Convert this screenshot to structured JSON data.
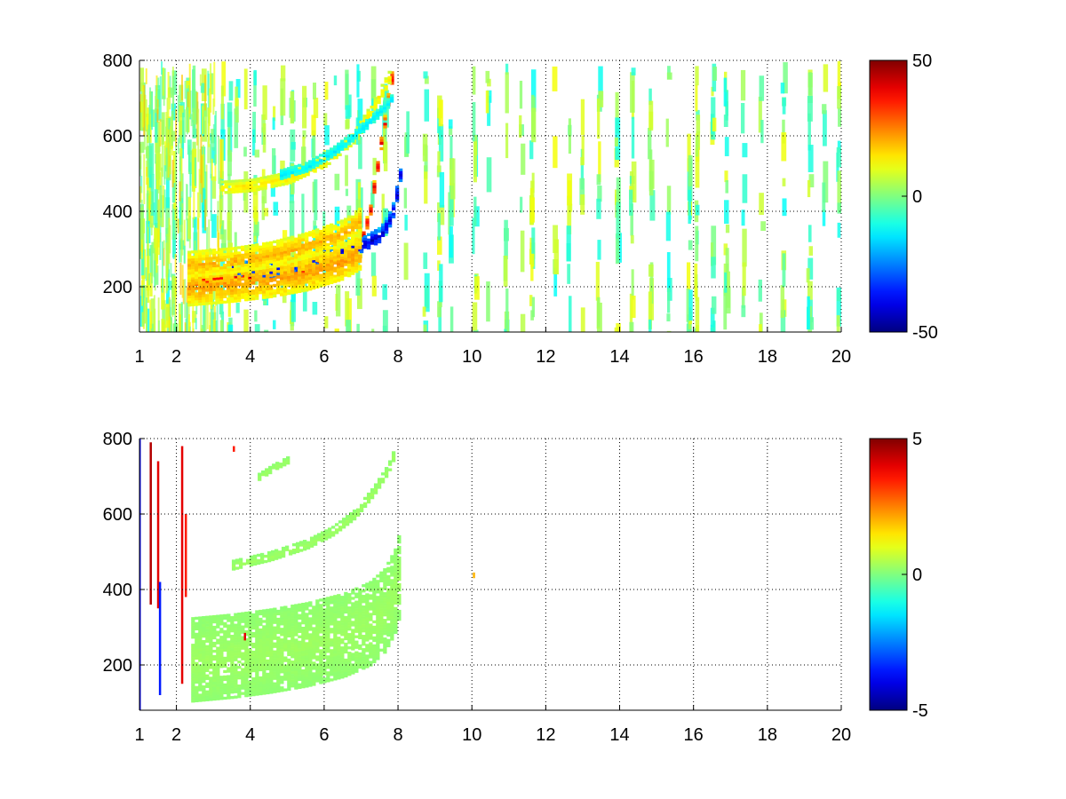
{
  "figure": {
    "background": "#ffffff"
  },
  "chart_data": [
    {
      "type": "heatmap",
      "title": "",
      "xlabel": "",
      "ylabel": "",
      "xlim": [
        1,
        20
      ],
      "ylim": [
        80,
        800
      ],
      "x_ticks": [
        "1",
        "2",
        "4",
        "6",
        "8",
        "10",
        "12",
        "14",
        "16",
        "18",
        "20"
      ],
      "x_tick_values": [
        1,
        2,
        4,
        6,
        8,
        10,
        12,
        14,
        16,
        18,
        20
      ],
      "y_ticks": [
        "200",
        "400",
        "600",
        "800"
      ],
      "y_tick_values": [
        200,
        400,
        600,
        800
      ],
      "grid": true,
      "colormap": "jet",
      "colorbar": {
        "min": -50,
        "max": 50,
        "ticks": [
          "50",
          "0",
          "-50"
        ],
        "tick_values": [
          50,
          0,
          -50
        ]
      },
      "features": [
        {
          "name": "red band",
          "value": 40,
          "width": 14,
          "points": [
            [
              2.5,
              222
            ],
            [
              3.5,
              226
            ],
            [
              4.5,
              238
            ],
            [
              5.5,
              252
            ],
            [
              6.0,
              262
            ],
            [
              6.5,
              282
            ],
            [
              7.0,
              330
            ],
            [
              7.2,
              400
            ],
            [
              7.4,
              520
            ],
            [
              7.6,
              640
            ],
            [
              7.8,
              760
            ]
          ]
        },
        {
          "name": "blue band",
          "value": -42,
          "width": 18,
          "points": [
            [
              3.5,
              250
            ],
            [
              4.5,
              245
            ],
            [
              5.5,
              268
            ],
            [
              6.5,
              298
            ],
            [
              7.0,
              312
            ],
            [
              7.5,
              340
            ],
            [
              7.8,
              390
            ],
            [
              8.0,
              480
            ],
            [
              8.1,
              570
            ]
          ]
        },
        {
          "name": "upper yellow band",
          "value": 15,
          "width": 14,
          "points": [
            [
              3.2,
              465
            ],
            [
              4.0,
              470
            ],
            [
              5.0,
              490
            ],
            [
              6.0,
              535
            ],
            [
              6.8,
              600
            ],
            [
              7.3,
              680
            ],
            [
              7.8,
              770
            ]
          ]
        },
        {
          "name": "upper blue band",
          "value": -15,
          "width": 10,
          "points": [
            [
              4.8,
              500
            ],
            [
              5.5,
              520
            ],
            [
              6.2,
              560
            ],
            [
              6.8,
              605
            ],
            [
              7.3,
              650
            ],
            [
              7.8,
              700
            ]
          ]
        },
        {
          "name": "orange halo lower",
          "value": 22,
          "width": 40,
          "points": [
            [
              2.3,
              200
            ],
            [
              3.5,
              210
            ],
            [
              4.5,
              222
            ],
            [
              5.5,
              240
            ],
            [
              6.5,
              270
            ],
            [
              7.0,
              300
            ]
          ]
        },
        {
          "name": "orange halo upper",
          "value": 20,
          "width": 30,
          "points": [
            [
              2.3,
              260
            ],
            [
              3.5,
              270
            ],
            [
              4.5,
              285
            ],
            [
              5.5,
              310
            ],
            [
              6.5,
              345
            ],
            [
              7.0,
              380
            ]
          ]
        }
      ],
      "noise_columns": [
        1.05,
        1.2,
        1.3,
        1.45,
        1.6,
        1.75,
        1.9,
        2.1,
        2.3,
        2.45,
        2.7,
        2.95,
        3.2,
        3.4,
        3.6,
        3.85,
        4.1,
        4.35,
        4.6,
        4.85,
        5.1,
        5.4,
        5.7,
        6.0,
        6.3,
        6.6,
        6.9,
        7.3,
        7.6,
        8.2,
        8.7,
        9.1,
        9.4,
        10.05,
        10.4,
        10.9,
        11.3,
        11.6,
        12.2,
        12.6,
        12.95,
        13.4,
        13.9,
        14.3,
        14.8,
        15.3,
        15.85,
        16.05,
        16.5,
        16.85,
        17.3,
        17.8,
        18.4,
        19.1,
        19.5,
        19.9
      ]
    },
    {
      "type": "heatmap",
      "title": "",
      "xlabel": "",
      "ylabel": "",
      "xlim": [
        1,
        20
      ],
      "ylim": [
        80,
        800
      ],
      "x_ticks": [
        "1",
        "2",
        "4",
        "6",
        "8",
        "10",
        "12",
        "14",
        "16",
        "18",
        "20"
      ],
      "x_tick_values": [
        1,
        2,
        4,
        6,
        8,
        10,
        12,
        14,
        16,
        18,
        20
      ],
      "y_ticks": [
        "200",
        "400",
        "600",
        "800"
      ],
      "y_tick_values": [
        200,
        400,
        600,
        800
      ],
      "grid": true,
      "colormap": "jet",
      "colorbar": {
        "min": -5,
        "max": 5,
        "ticks": [
          "5",
          "0",
          "-5"
        ],
        "tick_values": [
          5,
          0,
          -5
        ]
      },
      "features": [
        {
          "name": "lower green region",
          "value": 0.3,
          "width": 95,
          "points": [
            [
              2.4,
              215
            ],
            [
              3.5,
              225
            ],
            [
              4.5,
              238
            ],
            [
              5.5,
              255
            ],
            [
              6.5,
              280
            ],
            [
              7.2,
              310
            ],
            [
              7.6,
              345
            ],
            [
              7.9,
              400
            ],
            [
              8.05,
              460
            ]
          ]
        },
        {
          "name": "upper green band",
          "value": 0.3,
          "width": 12,
          "points": [
            [
              3.5,
              465
            ],
            [
              4.5,
              488
            ],
            [
              5.5,
              520
            ],
            [
              6.2,
              555
            ],
            [
              6.8,
              600
            ],
            [
              7.3,
              660
            ],
            [
              7.7,
              720
            ],
            [
              7.9,
              770
            ]
          ]
        },
        {
          "name": "short upper band",
          "value": 0.3,
          "width": 8,
          "points": [
            [
              4.2,
              700
            ],
            [
              4.6,
              725
            ],
            [
              5.0,
              745
            ]
          ]
        }
      ],
      "spikes": [
        {
          "x": 1.0,
          "y0": 80,
          "y1": 800,
          "value": -4
        },
        {
          "x": 1.3,
          "y0": 360,
          "y1": 790,
          "value": 4.5
        },
        {
          "x": 1.5,
          "y0": 350,
          "y1": 740,
          "value": 4
        },
        {
          "x": 1.55,
          "y0": 120,
          "y1": 420,
          "value": -3.5
        },
        {
          "x": 2.15,
          "y0": 150,
          "y1": 780,
          "value": 4
        },
        {
          "x": 2.25,
          "y0": 380,
          "y1": 600,
          "value": 3.5
        },
        {
          "x": 3.85,
          "y0": 265,
          "y1": 285,
          "value": 4
        },
        {
          "x": 3.55,
          "y0": 765,
          "y1": 780,
          "value": 3.5
        },
        {
          "x": 10.05,
          "y0": 430,
          "y1": 445,
          "value": 2
        }
      ]
    }
  ]
}
